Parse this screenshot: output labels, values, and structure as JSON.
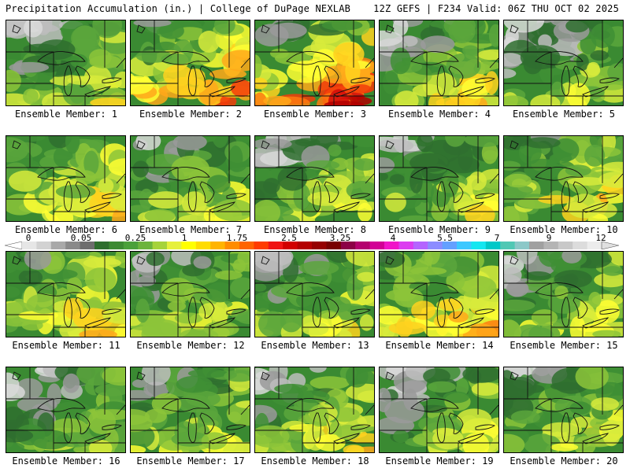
{
  "header": {
    "title": "Precipitation Accumulation (in.) | College of DuPage NEXLAB",
    "run_info": "12Z GEFS | F234 Valid: 06Z THU OCT 02 2025"
  },
  "panels": [
    {
      "label": "Ensemble Member: 1",
      "intensity": 0.45,
      "dry_west": 0.8
    },
    {
      "label": "Ensemble Member: 2",
      "intensity": 0.85,
      "dry_west": 0.5
    },
    {
      "label": "Ensemble Member: 3",
      "intensity": 1.0,
      "dry_west": 0.6
    },
    {
      "label": "Ensemble Member: 4",
      "intensity": 0.55,
      "dry_west": 0.7
    },
    {
      "label": "Ensemble Member: 5",
      "intensity": 0.35,
      "dry_west": 0.9
    },
    {
      "label": "Ensemble Member: 6",
      "intensity": 0.55,
      "dry_west": 0.2
    },
    {
      "label": "Ensemble Member: 7",
      "intensity": 0.35,
      "dry_west": 0.5
    },
    {
      "label": "Ensemble Member: 8",
      "intensity": 0.4,
      "dry_west": 0.7
    },
    {
      "label": "Ensemble Member: 9",
      "intensity": 0.4,
      "dry_west": 0.6
    },
    {
      "label": "Ensemble Member: 10",
      "intensity": 0.6,
      "dry_west": 0.3
    },
    {
      "label": "Ensemble Member: 11",
      "intensity": 0.6,
      "dry_west": 0.2
    },
    {
      "label": "Ensemble Member: 12",
      "intensity": 0.4,
      "dry_west": 0.6
    },
    {
      "label": "Ensemble Member: 13",
      "intensity": 0.45,
      "dry_west": 0.7
    },
    {
      "label": "Ensemble Member: 14",
      "intensity": 0.65,
      "dry_west": 0.1
    },
    {
      "label": "Ensemble Member: 15",
      "intensity": 0.4,
      "dry_west": 0.5
    },
    {
      "label": "Ensemble Member: 16",
      "intensity": 0.3,
      "dry_west": 0.9
    },
    {
      "label": "Ensemble Member: 17",
      "intensity": 0.45,
      "dry_west": 0.4
    },
    {
      "label": "Ensemble Member: 18",
      "intensity": 0.55,
      "dry_west": 0.7
    },
    {
      "label": "Ensemble Member: 19",
      "intensity": 0.35,
      "dry_west": 0.7
    },
    {
      "label": "Ensemble Member: 20",
      "intensity": 0.45,
      "dry_west": 0.5
    }
  ],
  "colorbar": {
    "ticks": [
      "0",
      "0.05",
      "0.25",
      "1",
      "1.75",
      "2.5",
      "3.25",
      "4",
      "5.5",
      "7",
      "9",
      "12"
    ],
    "colors": [
      "#e6e6e6",
      "#d2d2d2",
      "#a9a9a9",
      "#8a8a8a",
      "#6e6e6e",
      "#2e6e2e",
      "#3c8a32",
      "#4aa03a",
      "#6cb43c",
      "#a6d33a",
      "#e6f03c",
      "#ffff00",
      "#ffdc00",
      "#ffb400",
      "#ff8c00",
      "#ff6400",
      "#ff3c00",
      "#f01414",
      "#d20000",
      "#b40000",
      "#960000",
      "#780000",
      "#8c0046",
      "#b4006e",
      "#d20096",
      "#f014c8",
      "#dc3cf0",
      "#b464ff",
      "#8c8cff",
      "#64a0ff",
      "#3cc8ff",
      "#14e6f0",
      "#00c8c8",
      "#50c8b4",
      "#8cc8c8",
      "#a0a0a0",
      "#b4b4b4",
      "#c8c8c8",
      "#dcdcdc",
      "#ececec"
    ]
  }
}
